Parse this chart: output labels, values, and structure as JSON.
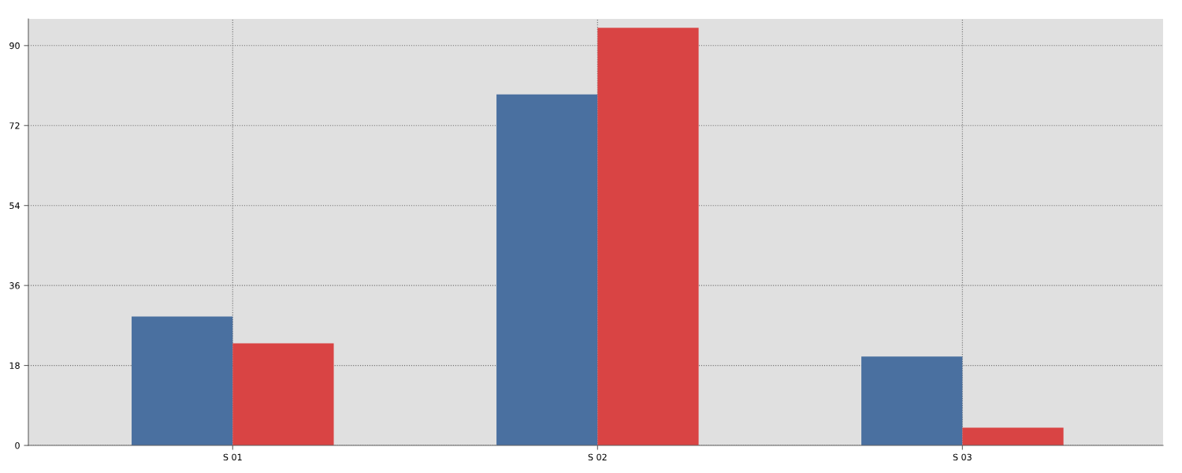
{
  "chart_data": {
    "type": "bar",
    "categories": [
      "S 01",
      "S 02",
      "S 03"
    ],
    "series": [
      {
        "color": "#4a70a0",
        "values": [
          29,
          79,
          20
        ]
      },
      {
        "color": "#d94444",
        "values": [
          23,
          94,
          4
        ]
      }
    ],
    "ylim": [
      0,
      96
    ],
    "yticks": [
      0,
      18,
      36,
      54,
      72,
      90
    ],
    "grid": true
  }
}
